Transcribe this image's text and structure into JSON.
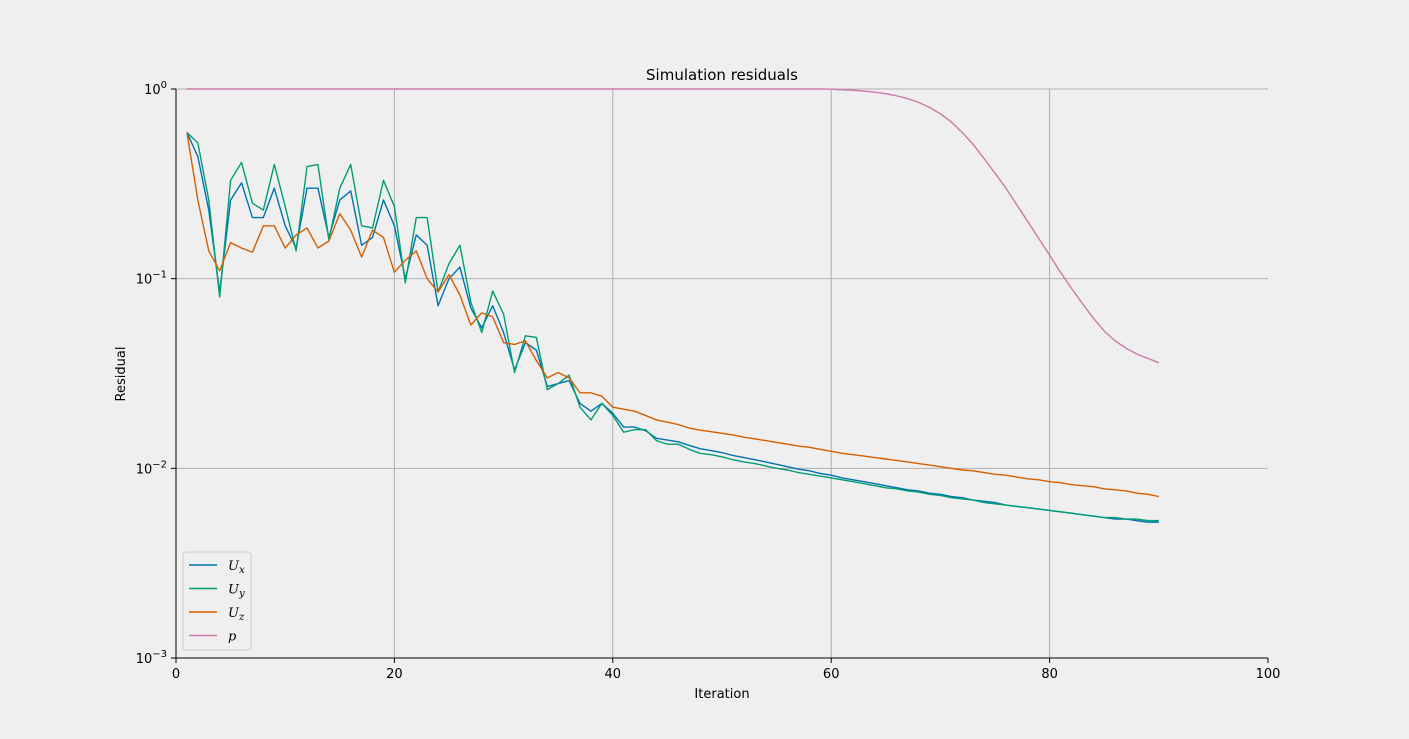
{
  "chart_data": {
    "type": "line",
    "title": "Simulation residuals",
    "xlabel": "Iteration",
    "ylabel": "Residual",
    "xlim": [
      0,
      100
    ],
    "ylim": [
      0.001,
      1
    ],
    "yscale": "log",
    "grid": true,
    "legend_position": "lower-left",
    "x_ticks": [
      {
        "value": 0,
        "label": "0"
      },
      {
        "value": 20,
        "label": "20"
      },
      {
        "value": 40,
        "label": "40"
      },
      {
        "value": 60,
        "label": "60"
      },
      {
        "value": 80,
        "label": "80"
      },
      {
        "value": 100,
        "label": "100"
      }
    ],
    "y_ticks": [
      {
        "value": 0.001,
        "base": "10",
        "exp": "−3"
      },
      {
        "value": 0.01,
        "base": "10",
        "exp": "−2"
      },
      {
        "value": 0.1,
        "base": "10",
        "exp": "−1"
      },
      {
        "value": 1,
        "base": "10",
        "exp": "0"
      }
    ],
    "x": [
      1,
      2,
      3,
      4,
      5,
      6,
      7,
      8,
      9,
      10,
      11,
      12,
      13,
      14,
      15,
      16,
      17,
      18,
      19,
      20,
      21,
      22,
      23,
      24,
      25,
      26,
      27,
      28,
      29,
      30,
      31,
      32,
      33,
      34,
      35,
      36,
      37,
      38,
      39,
      40,
      41,
      42,
      43,
      44,
      45,
      46,
      47,
      48,
      49,
      50,
      51,
      52,
      53,
      54,
      55,
      56,
      57,
      58,
      59,
      60,
      61,
      62,
      63,
      64,
      65,
      66,
      67,
      68,
      69,
      70,
      71,
      72,
      73,
      74,
      75,
      76,
      77,
      78,
      79,
      80,
      81,
      82,
      83,
      84,
      85,
      86,
      87,
      88,
      89,
      90
    ],
    "series": [
      {
        "name": "U",
        "sub": "x",
        "color": "#0072b2",
        "values": [
          0.59,
          0.44,
          0.23,
          0.085,
          0.26,
          0.32,
          0.21,
          0.21,
          0.3,
          0.19,
          0.145,
          0.3,
          0.3,
          0.165,
          0.26,
          0.29,
          0.15,
          0.165,
          0.26,
          0.19,
          0.1,
          0.17,
          0.15,
          0.072,
          0.1,
          0.115,
          0.07,
          0.055,
          0.072,
          0.052,
          0.033,
          0.046,
          0.042,
          0.027,
          0.028,
          0.029,
          0.022,
          0.02,
          0.022,
          0.0195,
          0.0165,
          0.0165,
          0.0158,
          0.0144,
          0.0141,
          0.0138,
          0.0132,
          0.0127,
          0.0124,
          0.0121,
          0.0117,
          0.0114,
          0.0111,
          0.0108,
          0.0105,
          0.0102,
          0.0099,
          0.0097,
          0.0094,
          0.0092,
          0.0089,
          0.0087,
          0.0085,
          0.0083,
          0.0081,
          0.0079,
          0.0077,
          0.0076,
          0.0074,
          0.0073,
          0.0071,
          0.007,
          0.0068,
          0.0067,
          0.0066,
          0.0064,
          0.0063,
          0.0062,
          0.0061,
          0.006,
          0.0059,
          0.0058,
          0.0057,
          0.0056,
          0.0055,
          0.0054,
          0.0054,
          0.0053,
          0.0052,
          0.0052
        ]
      },
      {
        "name": "U",
        "sub": "y",
        "color": "#009e73",
        "values": [
          0.59,
          0.52,
          0.26,
          0.08,
          0.33,
          0.41,
          0.25,
          0.23,
          0.4,
          0.24,
          0.14,
          0.39,
          0.4,
          0.16,
          0.3,
          0.4,
          0.19,
          0.185,
          0.33,
          0.24,
          0.095,
          0.21,
          0.21,
          0.085,
          0.12,
          0.15,
          0.075,
          0.052,
          0.086,
          0.065,
          0.032,
          0.05,
          0.049,
          0.026,
          0.028,
          0.031,
          0.021,
          0.018,
          0.022,
          0.019,
          0.0155,
          0.016,
          0.016,
          0.014,
          0.0134,
          0.0134,
          0.0126,
          0.012,
          0.0118,
          0.0115,
          0.0111,
          0.0108,
          0.0106,
          0.0103,
          0.01,
          0.0098,
          0.0095,
          0.0093,
          0.0091,
          0.0089,
          0.0087,
          0.0085,
          0.0083,
          0.0081,
          0.0079,
          0.0078,
          0.0076,
          0.0075,
          0.0073,
          0.0072,
          0.007,
          0.0069,
          0.0068,
          0.0066,
          0.0065,
          0.0064,
          0.0063,
          0.0062,
          0.0061,
          0.006,
          0.0059,
          0.0058,
          0.0057,
          0.0056,
          0.0055,
          0.0055,
          0.0054,
          0.0054,
          0.0053,
          0.0053
        ]
      },
      {
        "name": "U",
        "sub": "z",
        "color": "#d55e00",
        "values": [
          0.59,
          0.26,
          0.14,
          0.11,
          0.155,
          0.145,
          0.138,
          0.19,
          0.19,
          0.145,
          0.17,
          0.185,
          0.145,
          0.158,
          0.22,
          0.18,
          0.13,
          0.18,
          0.165,
          0.108,
          0.125,
          0.14,
          0.1,
          0.085,
          0.105,
          0.082,
          0.057,
          0.066,
          0.063,
          0.046,
          0.045,
          0.047,
          0.037,
          0.03,
          0.032,
          0.03,
          0.025,
          0.025,
          0.024,
          0.021,
          0.0205,
          0.02,
          0.019,
          0.018,
          0.0175,
          0.017,
          0.0163,
          0.0159,
          0.0156,
          0.0153,
          0.015,
          0.0146,
          0.0143,
          0.014,
          0.0137,
          0.0134,
          0.0131,
          0.0129,
          0.0126,
          0.0123,
          0.012,
          0.0118,
          0.0116,
          0.0114,
          0.0112,
          0.011,
          0.0108,
          0.0106,
          0.0104,
          0.0102,
          0.01,
          0.0098,
          0.0097,
          0.0095,
          0.0093,
          0.0092,
          0.009,
          0.0088,
          0.0087,
          0.0085,
          0.0084,
          0.0082,
          0.0081,
          0.008,
          0.0078,
          0.0077,
          0.0076,
          0.0074,
          0.0073,
          0.0071
        ]
      },
      {
        "name": "p",
        "sub": "",
        "color": "#cc79a7",
        "values": [
          1,
          1,
          1,
          1,
          1,
          1,
          1,
          1,
          1,
          1,
          1,
          1,
          1,
          1,
          1,
          1,
          1,
          1,
          1,
          1,
          1,
          1,
          1,
          1,
          1,
          1,
          1,
          1,
          1,
          1,
          1,
          1,
          1,
          1,
          1,
          1,
          1,
          1,
          1,
          1,
          1,
          1,
          1,
          1,
          1,
          1,
          1,
          1,
          1,
          1,
          1,
          1,
          1,
          1,
          1,
          1,
          1,
          1,
          1,
          0.998,
          0.99,
          0.985,
          0.975,
          0.962,
          0.945,
          0.92,
          0.89,
          0.85,
          0.8,
          0.74,
          0.67,
          0.59,
          0.51,
          0.43,
          0.36,
          0.3,
          0.245,
          0.2,
          0.163,
          0.133,
          0.108,
          0.089,
          0.074,
          0.062,
          0.053,
          0.047,
          0.043,
          0.04,
          0.038,
          0.036
        ]
      }
    ]
  }
}
